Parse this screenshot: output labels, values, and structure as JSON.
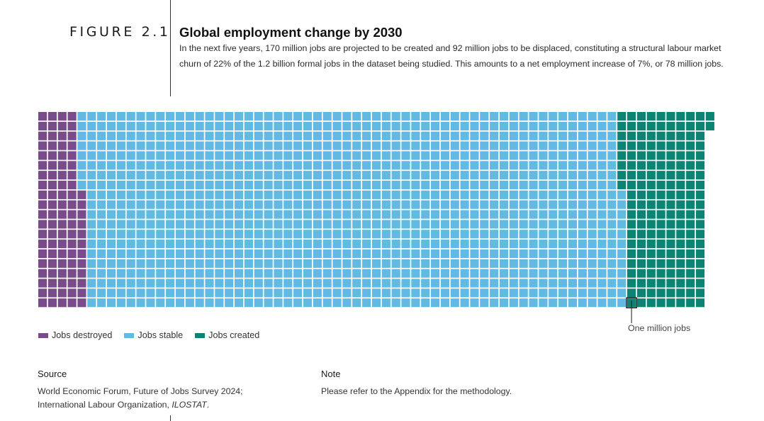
{
  "figure": {
    "label": "FIGURE 2.1",
    "title": "Global employment change by 2030",
    "subtitle": "In the next five years, 170 million jobs are projected to be created and 92 million jobs to be displaced, constituting a structural labour market churn of 22% of the 1.2 billion formal jobs in the dataset being studied. This amounts to a net employment increase of 7%, or 78 million jobs."
  },
  "colors": {
    "destroyed": "#7a4b8a",
    "stable": "#62b9e2",
    "created": "#0c8473"
  },
  "chart_data": {
    "type": "waffle",
    "unit": "One million jobs",
    "grid_rows": 20,
    "series": [
      {
        "name": "Jobs destroyed",
        "value": 92
      },
      {
        "name": "Jobs stable",
        "value": 1100
      },
      {
        "name": "Jobs created",
        "value": 170
      }
    ]
  },
  "legend": [
    {
      "label": "Jobs destroyed",
      "color": "#7a4b8a"
    },
    {
      "label": "Jobs stable",
      "color": "#62b9e2"
    },
    {
      "label": "Jobs created",
      "color": "#0c8473"
    }
  ],
  "callout": {
    "label": "One million jobs"
  },
  "source": {
    "heading": "Source",
    "line1": "World Economic Forum, Future of Jobs Survey 2024;",
    "line2_prefix": "International Labour Organization, ",
    "line2_italic": "ILOSTAT",
    "line2_suffix": "."
  },
  "note": {
    "heading": "Note",
    "text": "Please refer to the Appendix for the methodology."
  }
}
